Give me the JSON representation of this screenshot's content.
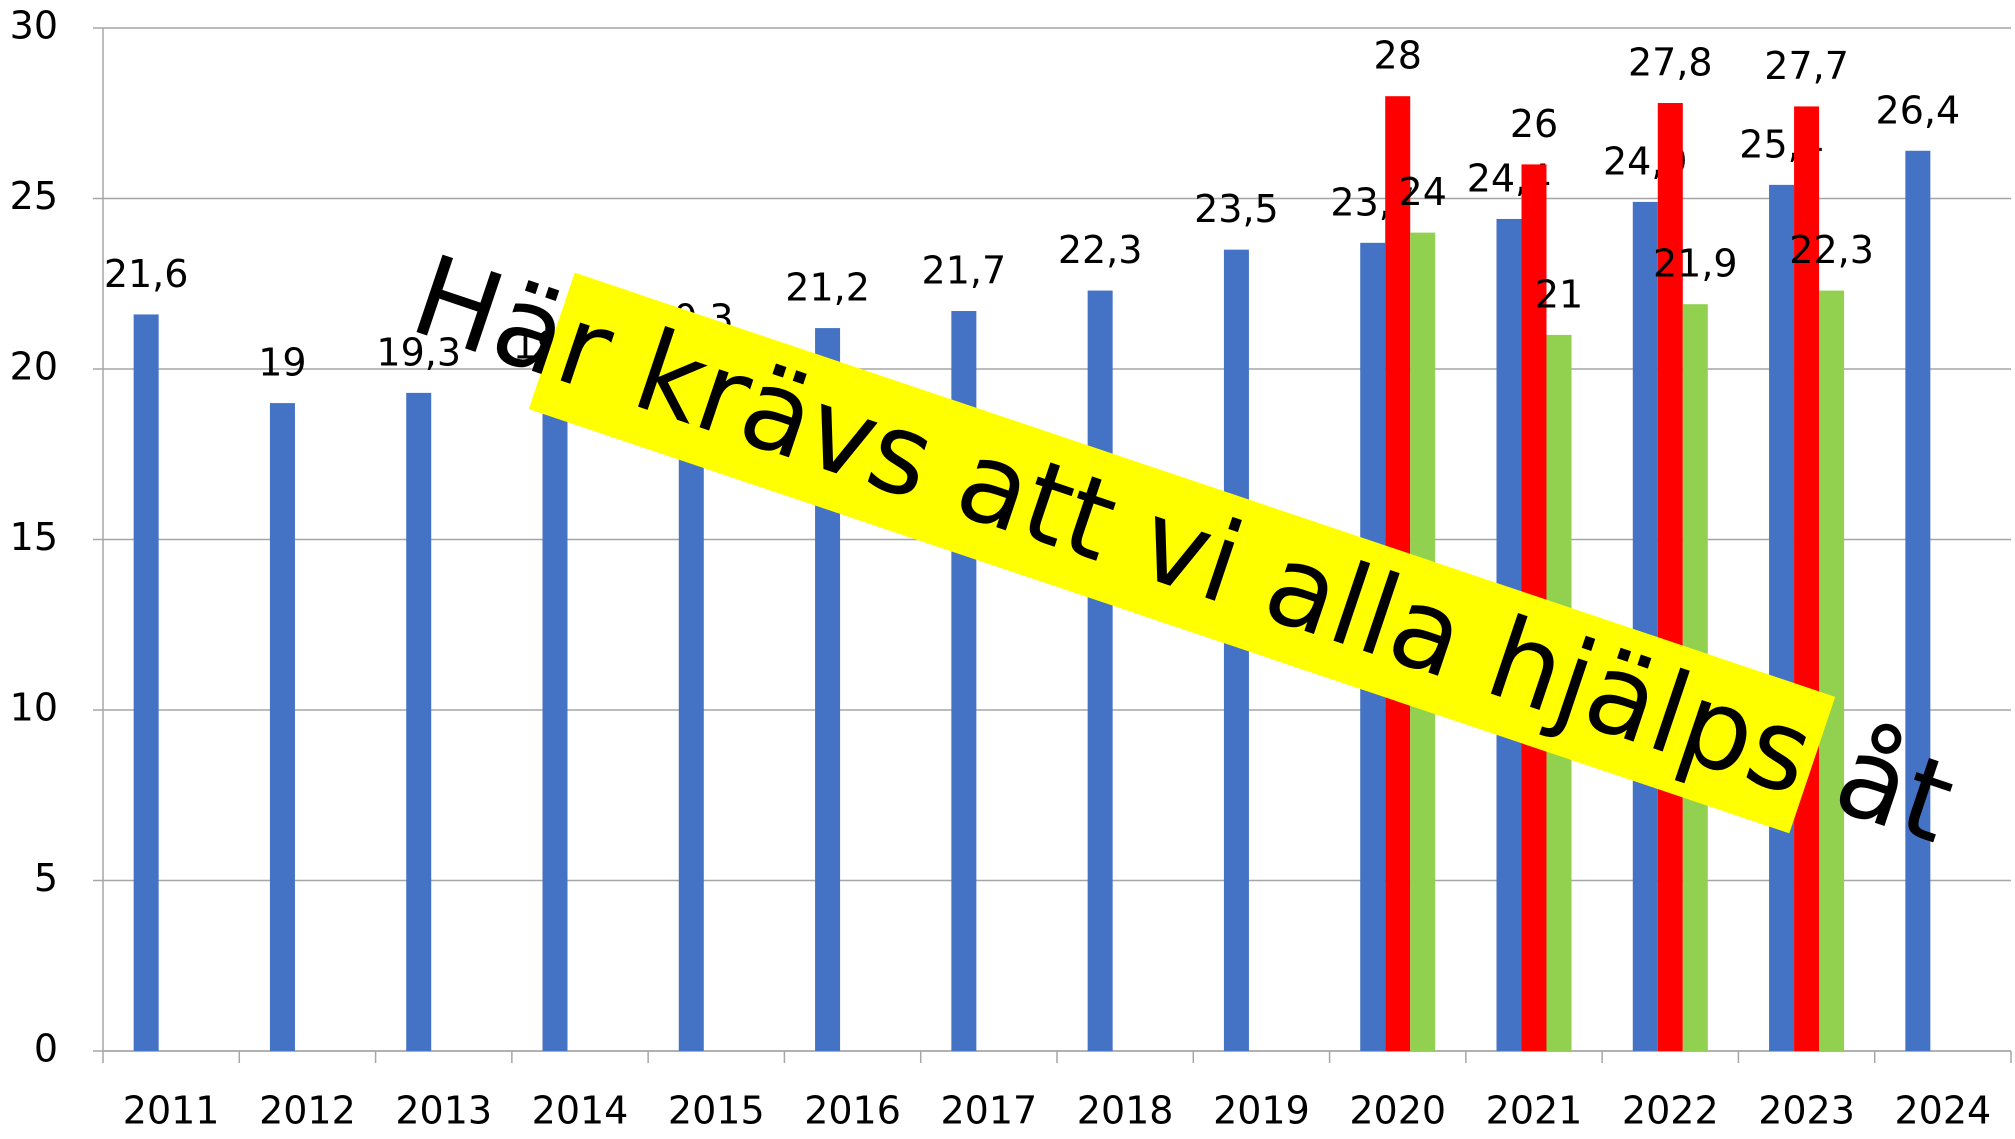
{
  "chart_data": {
    "type": "bar",
    "categories": [
      "2011",
      "2012",
      "2013",
      "2014",
      "2015",
      "2016",
      "2017",
      "2018",
      "2019",
      "2020",
      "2021",
      "2022",
      "2023",
      "2024"
    ],
    "series": [
      {
        "color": "#4472c4",
        "values": [
          21.6,
          19,
          19.3,
          19.5,
          20.3,
          21.2,
          21.7,
          22.3,
          23.5,
          23.7,
          24.4,
          24.9,
          25.4,
          26.4
        ],
        "value_labels": [
          "21,6",
          "19",
          "19,3",
          "19,5",
          "20,3",
          "21,2",
          "21,7",
          "22,3",
          "23,5",
          "23,7",
          "24,4",
          "24,9",
          "25,4",
          "26,4"
        ]
      },
      {
        "color": "#ff0000",
        "values": [
          null,
          null,
          null,
          null,
          null,
          null,
          null,
          null,
          null,
          28,
          26,
          27.8,
          27.7,
          null
        ],
        "value_labels": [
          null,
          null,
          null,
          null,
          null,
          null,
          null,
          null,
          null,
          "28",
          "26",
          "27,8",
          "27,7",
          null
        ]
      },
      {
        "color": "#92d050",
        "values": [
          null,
          null,
          null,
          null,
          null,
          null,
          null,
          null,
          null,
          24,
          21,
          21.9,
          22.3,
          null
        ],
        "value_labels": [
          null,
          null,
          null,
          null,
          null,
          null,
          null,
          null,
          null,
          "24",
          "21",
          "21,9",
          "22,3",
          null
        ]
      }
    ],
    "ylim": [
      0,
      30
    ],
    "yticks": [
      0,
      5,
      10,
      15,
      20,
      25,
      30
    ],
    "grid": true,
    "annotation": "Här krävs att vi alla hjälps åt"
  }
}
